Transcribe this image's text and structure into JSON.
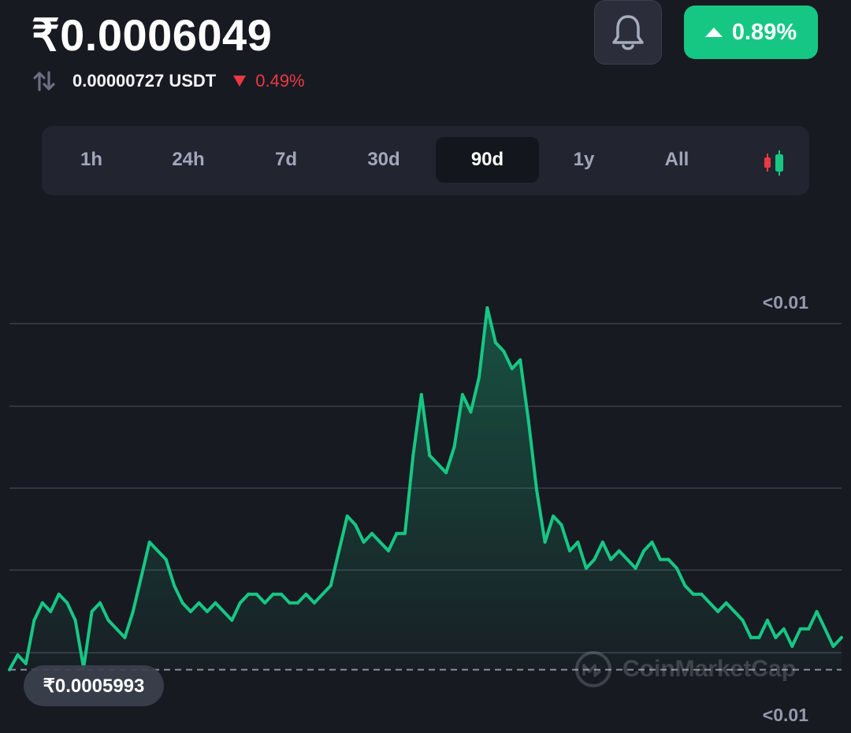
{
  "header": {
    "price": "₹0.0006049",
    "usdt_value": "0.00000727 USDT",
    "usdt_change": "0.49%",
    "change_badge": "0.89%",
    "swap_icon": "swap-vertical-icon",
    "bell_icon": "bell-icon"
  },
  "tabs": [
    {
      "label": "1h",
      "active": false
    },
    {
      "label": "24h",
      "active": false
    },
    {
      "label": "7d",
      "active": false
    },
    {
      "label": "30d",
      "active": false
    },
    {
      "label": "90d",
      "active": true
    },
    {
      "label": "1y",
      "active": false
    },
    {
      "label": "All",
      "active": false
    }
  ],
  "chart_mode_icon": "candlestick-icon",
  "chart": {
    "min_label": "₹0.0005993",
    "y_top_label": "<0.01",
    "y_bottom_label": "<0.01",
    "watermark": "CoinMarketCap"
  },
  "colors": {
    "background": "#181a22",
    "up": "#16c784",
    "down": "#ea3943",
    "tab_bar": "#222530"
  },
  "chart_data": {
    "type": "area",
    "title": "",
    "baseline_value": 0.0005993,
    "y_min": 0.000595,
    "y_max": 0.000642,
    "values": [
      0.0005993,
      0.000601,
      0.0006,
      0.000605,
      0.000607,
      0.000606,
      0.000608,
      0.000607,
      0.000605,
      0.0005995,
      0.000606,
      0.000607,
      0.000605,
      0.000604,
      0.000603,
      0.000606,
      0.00061,
      0.000614,
      0.000613,
      0.000612,
      0.000609,
      0.000607,
      0.000606,
      0.000607,
      0.000606,
      0.000607,
      0.000606,
      0.000605,
      0.000607,
      0.000608,
      0.000608,
      0.000607,
      0.000608,
      0.000608,
      0.000607,
      0.000607,
      0.000608,
      0.000607,
      0.000608,
      0.000609,
      0.000613,
      0.000617,
      0.000616,
      0.000614,
      0.000615,
      0.000614,
      0.000613,
      0.000615,
      0.000615,
      0.000624,
      0.000631,
      0.000624,
      0.000623,
      0.000622,
      0.000625,
      0.000631,
      0.000629,
      0.000633,
      0.000641,
      0.000637,
      0.000636,
      0.000634,
      0.000635,
      0.000628,
      0.00062,
      0.000614,
      0.000617,
      0.000616,
      0.000613,
      0.000614,
      0.000611,
      0.000612,
      0.000614,
      0.000612,
      0.000613,
      0.000612,
      0.000611,
      0.000613,
      0.000614,
      0.000612,
      0.000612,
      0.000611,
      0.000609,
      0.000608,
      0.000608,
      0.000607,
      0.000606,
      0.000607,
      0.000606,
      0.000605,
      0.000603,
      0.000603,
      0.000605,
      0.000603,
      0.000604,
      0.000602,
      0.000604,
      0.000604,
      0.000606,
      0.000604,
      0.000602,
      0.000603
    ]
  }
}
